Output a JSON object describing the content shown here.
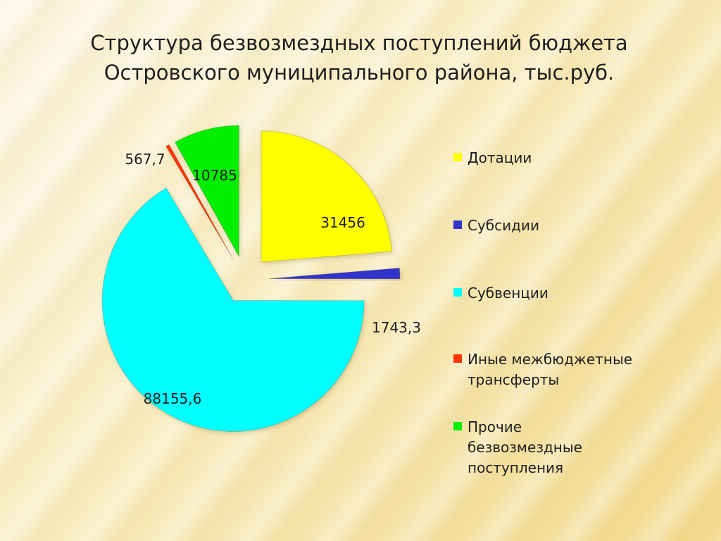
{
  "title": {
    "line1": "Структура безвозмездных поступлений бюджета",
    "line2": "Островского муниципального района, тыс.руб."
  },
  "chart_data": {
    "type": "pie",
    "exploded": true,
    "title": "Структура безвозмездных поступлений бюджета Островского муниципального района, тыс.руб.",
    "legend_position": "right",
    "slices": [
      {
        "label": "Дотации",
        "value": 31456,
        "value_label": "31456",
        "color": "#ffff00"
      },
      {
        "label": "Субсидии",
        "value": 1743.3,
        "value_label": "1743,3",
        "color": "#3333cc"
      },
      {
        "label": "Субвенции",
        "value": 88155.6,
        "value_label": "88155,6",
        "color": "#00ffff"
      },
      {
        "label": "Иные межбюджетные трансферты",
        "value": 567.7,
        "value_label": "567,7",
        "color": "#ff3300"
      },
      {
        "label": "Прочие безвозмездные поступления",
        "value": 10785,
        "value_label": "10785",
        "color": "#00ee00"
      }
    ]
  },
  "legend": {
    "items": [
      {
        "lines": [
          "Дотации"
        ],
        "color": "#ffff00"
      },
      {
        "lines": [
          "Субсидии"
        ],
        "color": "#3333cc"
      },
      {
        "lines": [
          "Субвенции"
        ],
        "color": "#00ffff"
      },
      {
        "lines": [
          "Иные межбюджетные",
          "трансферты"
        ],
        "color": "#ff3300"
      },
      {
        "lines": [
          "Прочие",
          "безвозмездные",
          "поступления"
        ],
        "color": "#00ee00"
      }
    ]
  }
}
